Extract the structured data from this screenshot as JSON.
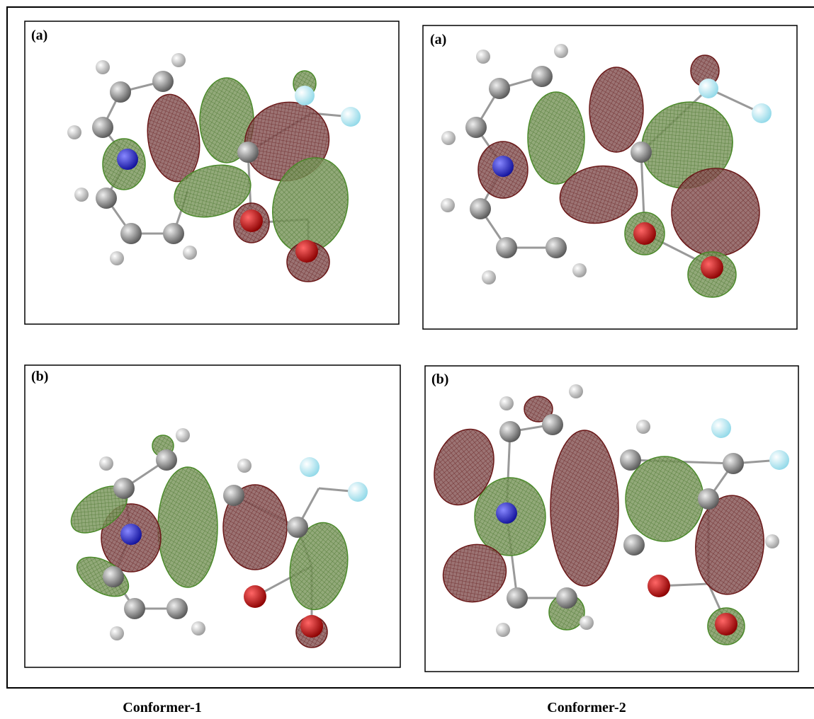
{
  "panels": [
    {
      "label": "(a)"
    },
    {
      "label": "(a)"
    },
    {
      "label": "(b)"
    },
    {
      "label": "(b)"
    }
  ],
  "captions": [
    "Conformer-1",
    "Conformer-2"
  ]
}
